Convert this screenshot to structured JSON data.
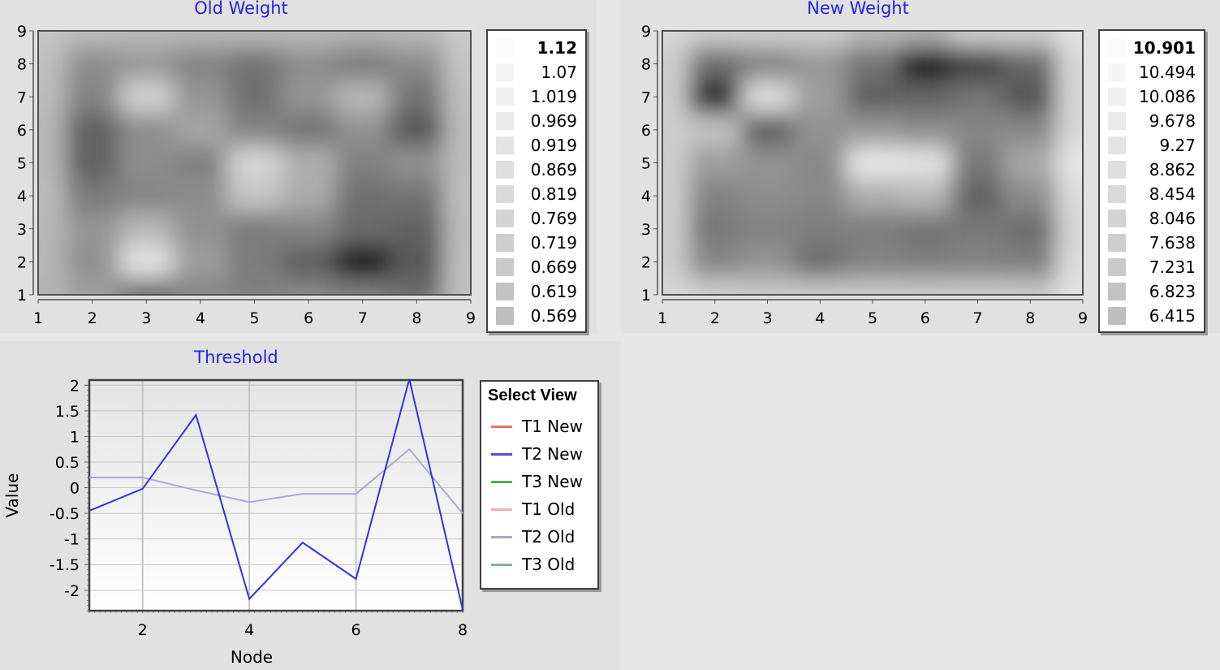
{
  "charts": {
    "old_weight": {
      "title": "Old Weight",
      "x_ticks": [
        "1",
        "2",
        "3",
        "4",
        "5",
        "6",
        "7",
        "8",
        "9"
      ],
      "y_ticks": [
        "1",
        "2",
        "3",
        "4",
        "5",
        "6",
        "7",
        "8",
        "9"
      ],
      "legend": [
        "1.12",
        "1.07",
        "1.019",
        "0.969",
        "0.919",
        "0.869",
        "0.819",
        "0.769",
        "0.719",
        "0.669",
        "0.619",
        "0.569"
      ]
    },
    "new_weight": {
      "title": "New Weight",
      "x_ticks": [
        "1",
        "2",
        "3",
        "4",
        "5",
        "6",
        "7",
        "8",
        "9"
      ],
      "y_ticks": [
        "1",
        "2",
        "3",
        "4",
        "5",
        "6",
        "7",
        "8",
        "9"
      ],
      "legend": [
        "10.901",
        "10.494",
        "10.086",
        "9.678",
        "9.27",
        "8.862",
        "8.454",
        "8.046",
        "7.638",
        "7.231",
        "6.823",
        "6.415"
      ]
    },
    "threshold": {
      "title": "Threshold",
      "xlabel": "Node",
      "ylabel": "Value",
      "x_ticks": [
        "2",
        "4",
        "6",
        "8"
      ],
      "y_ticks": [
        "2",
        "1.5",
        "1",
        "0.5",
        "0",
        "-0.5",
        "-1",
        "-1.5",
        "-2"
      ],
      "legend_title": "Select View",
      "legend": [
        "T1 New",
        "T2 New",
        "T3 New",
        "T1 Old",
        "T2 Old",
        "T3 Old"
      ]
    }
  },
  "chart_data": [
    {
      "type": "heatmap",
      "title": "Old Weight",
      "x": [
        1,
        2,
        3,
        4,
        5,
        6,
        7,
        8,
        9
      ],
      "y": [
        1,
        2,
        3,
        4,
        5,
        6,
        7,
        8,
        9
      ],
      "z": [
        [
          0.95,
          0.9,
          0.78,
          0.84,
          0.83,
          0.84,
          0.82,
          0.78,
          0.98
        ],
        [
          0.96,
          0.87,
          1.06,
          0.9,
          0.82,
          0.75,
          0.58,
          0.74,
          0.98
        ],
        [
          0.96,
          0.88,
          0.96,
          0.87,
          0.82,
          0.84,
          0.78,
          0.76,
          0.97
        ],
        [
          0.97,
          0.82,
          0.84,
          0.86,
          0.99,
          0.93,
          0.79,
          0.8,
          0.98
        ],
        [
          0.96,
          0.76,
          0.86,
          0.83,
          1.03,
          0.94,
          0.83,
          0.87,
          0.97
        ],
        [
          0.96,
          0.76,
          0.86,
          0.92,
          0.84,
          0.8,
          0.87,
          0.74,
          0.97
        ],
        [
          0.97,
          0.84,
          1.02,
          0.88,
          0.79,
          0.88,
          0.96,
          0.8,
          0.98
        ],
        [
          0.98,
          0.86,
          0.89,
          0.84,
          0.8,
          0.86,
          0.82,
          0.86,
          0.99
        ],
        [
          0.99,
          0.97,
          0.96,
          0.96,
          0.96,
          0.96,
          0.95,
          0.96,
          1.0
        ]
      ],
      "legend": [
        1.12,
        1.07,
        1.019,
        0.969,
        0.919,
        0.869,
        0.819,
        0.769,
        0.719,
        0.669,
        0.619,
        0.569
      ],
      "xlim": [
        1,
        9
      ],
      "ylim": [
        1,
        9
      ]
    },
    {
      "type": "heatmap",
      "title": "New Weight",
      "x": [
        1,
        2,
        3,
        4,
        5,
        6,
        7,
        8,
        9
      ],
      "y": [
        1,
        2,
        3,
        4,
        5,
        6,
        7,
        8,
        9
      ],
      "z": [
        [
          10.2,
          10.0,
          9.9,
          9.9,
          9.9,
          9.9,
          9.9,
          9.9,
          10.4
        ],
        [
          10.0,
          8.7,
          8.9,
          8.2,
          8.6,
          8.5,
          8.6,
          8.5,
          10.3
        ],
        [
          10.0,
          8.4,
          8.6,
          8.5,
          8.5,
          8.3,
          8.4,
          8.2,
          10.2
        ],
        [
          10.0,
          8.6,
          8.8,
          8.7,
          9.4,
          9.6,
          8.0,
          8.8,
          10.3
        ],
        [
          10.0,
          9.1,
          8.9,
          8.7,
          10.5,
          10.4,
          8.4,
          9.3,
          10.5
        ],
        [
          10.0,
          9.8,
          7.9,
          8.9,
          9.0,
          8.8,
          8.7,
          8.7,
          10.2
        ],
        [
          10.0,
          6.9,
          10.3,
          9.1,
          7.9,
          8.0,
          8.3,
          7.7,
          10.2
        ],
        [
          10.0,
          8.2,
          8.6,
          9.0,
          8.3,
          6.5,
          7.3,
          8.1,
          10.2
        ],
        [
          10.2,
          10.0,
          10.0,
          10.0,
          9.6,
          9.4,
          10.0,
          10.0,
          10.4
        ]
      ],
      "legend": [
        10.901,
        10.494,
        10.086,
        9.678,
        9.27,
        8.862,
        8.454,
        8.046,
        7.638,
        7.231,
        6.823,
        6.415
      ],
      "xlim": [
        1,
        9
      ],
      "ylim": [
        1,
        9
      ]
    },
    {
      "type": "line",
      "title": "Threshold",
      "xlabel": "Node",
      "ylabel": "Value",
      "x": [
        1,
        2,
        3,
        4,
        5,
        6,
        7,
        8
      ],
      "series": [
        {
          "name": "T2 New",
          "color": "#3333dd",
          "values": [
            -0.45,
            -0.02,
            1.42,
            -2.17,
            -1.07,
            -1.78,
            2.12,
            -2.38
          ]
        },
        {
          "name": "T2 Old",
          "color": "#aaaad6",
          "values": [
            0.2,
            0.2,
            -0.05,
            -0.28,
            -0.12,
            -0.12,
            0.75,
            -0.5
          ]
        }
      ],
      "legend_colors": [
        "#f07070",
        "#5050e0",
        "#50b050",
        "#f4b0b0",
        "#a8a8d0",
        "#80b0a8"
      ],
      "xlim": [
        1,
        8
      ],
      "ylim": [
        -2.4,
        2.1
      ],
      "grid": true,
      "legend_position": "right"
    }
  ]
}
